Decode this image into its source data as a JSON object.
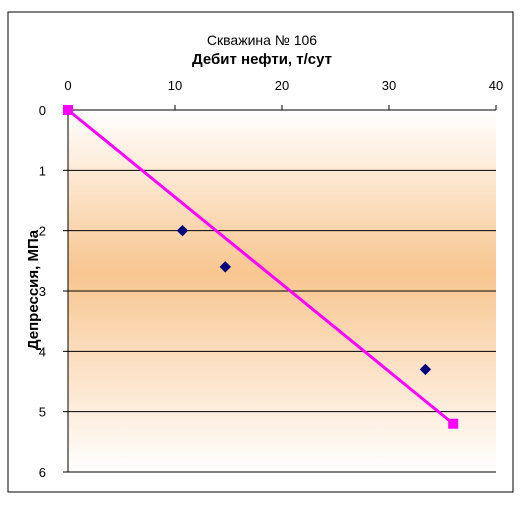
{
  "chart_data": {
    "type": "scatter",
    "title": "Скважина  № 106",
    "xlabel": "Дебит нефти, т/сут",
    "ylabel": "Депрессия, МПа",
    "x_axis_position": "top",
    "y_axis_inverted": true,
    "xlim": [
      0,
      40
    ],
    "ylim": [
      0,
      6
    ],
    "x_ticks": [
      "0",
      "10",
      "20",
      "30",
      "40"
    ],
    "y_ticks": [
      "0",
      "1",
      "2",
      "3",
      "4",
      "5",
      "6"
    ],
    "grid": "horizontal",
    "legend": "none",
    "series": [
      {
        "marker": "diamond",
        "color": "#000080",
        "points": [
          {
            "x": 10.7,
            "y": 2.0
          },
          {
            "x": 14.7,
            "y": 2.6
          },
          {
            "x": 33.4,
            "y": 4.3
          }
        ]
      },
      {
        "marker": "square",
        "line": true,
        "color": "#ff00ff",
        "points": [
          {
            "x": 0,
            "y": 0
          },
          {
            "x": 36.0,
            "y": 5.2
          }
        ]
      }
    ]
  }
}
